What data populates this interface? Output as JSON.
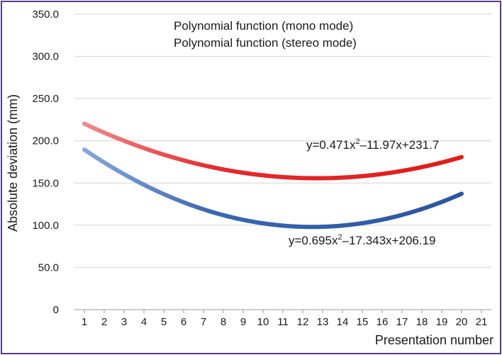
{
  "chart_data": {
    "type": "line",
    "title": "",
    "xlabel": "Presentation number",
    "ylabel": "Absolute deviation (mm)",
    "x_ticks": [
      "1",
      "2",
      "3",
      "4",
      "5",
      "6",
      "7",
      "8",
      "9",
      "10",
      "11",
      "12",
      "13",
      "14",
      "15",
      "16",
      "17",
      "18",
      "19",
      "20",
      "21"
    ],
    "y_ticks": [
      "0",
      "50.0",
      "100.0",
      "150.0",
      "200.0",
      "250.0",
      "300.0",
      "350.0"
    ],
    "xlim": [
      1,
      21
    ],
    "ylim": [
      0,
      350
    ],
    "grid": "horizontal",
    "legend_position": "top",
    "series": [
      {
        "name": "Polynomial function (mono mode)",
        "color": "#2f5aa6",
        "equation": "y=0.695x",
        "equation_sup": "2",
        "equation_rest": "–17.343x+206.19",
        "coefficients": [
          0.695,
          -17.343,
          206.19
        ],
        "x_range": [
          1,
          20
        ]
      },
      {
        "name": "Polynomial function (stereo mode)",
        "color": "#e02020",
        "equation": "y=0.471x",
        "equation_sup": "2",
        "equation_rest": "–11.97x+231.7",
        "coefficients": [
          0.471,
          -11.97,
          231.7
        ],
        "x_range": [
          1,
          20
        ]
      }
    ]
  }
}
